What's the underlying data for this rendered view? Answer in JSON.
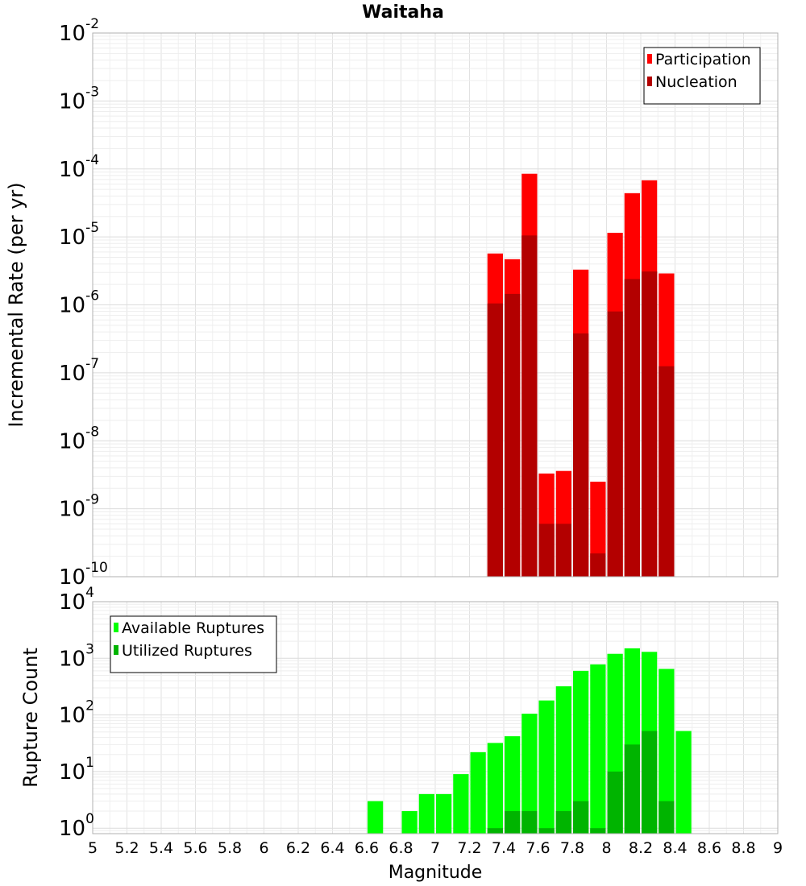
{
  "title": "Waitaha",
  "xlabel": "Magnitude",
  "x_ticks": [
    "5",
    "5.2",
    "5.4",
    "5.6",
    "5.8",
    "6",
    "6.2",
    "6.4",
    "6.6",
    "6.8",
    "7",
    "7.2",
    "7.4",
    "7.6",
    "7.8",
    "8",
    "8.2",
    "8.4",
    "8.6",
    "8.8",
    "9"
  ],
  "chart_data": [
    {
      "type": "bar",
      "ylabel": "Incremental Rate (per yr)",
      "yscale": "log",
      "xlim": [
        5,
        9
      ],
      "ylim": [
        1e-10,
        0.01
      ],
      "y_ticks": [
        {
          "mant": "10",
          "exp": "-10"
        },
        {
          "mant": "10",
          "exp": "-9"
        },
        {
          "mant": "10",
          "exp": "-8"
        },
        {
          "mant": "10",
          "exp": "-7"
        },
        {
          "mant": "10",
          "exp": "-6"
        },
        {
          "mant": "10",
          "exp": "-5"
        },
        {
          "mant": "10",
          "exp": "-4"
        },
        {
          "mant": "10",
          "exp": "-3"
        },
        {
          "mant": "10",
          "exp": "-2"
        }
      ],
      "legend": {
        "placement": "top-right"
      },
      "series": [
        {
          "name": "Participation",
          "color": "#ff0000",
          "x": [
            7.35,
            7.45,
            7.55,
            7.65,
            7.75,
            7.85,
            7.95,
            8.05,
            8.15,
            8.25,
            8.35
          ],
          "values": [
            5.7e-06,
            4.7e-06,
            8.5e-05,
            3.3e-09,
            3.6e-09,
            3.3e-06,
            2.5e-09,
            1.15e-05,
            4.4e-05,
            6.8e-05,
            2.9e-06
          ]
        },
        {
          "name": "Nucleation",
          "color": "#b30000",
          "x": [
            7.35,
            7.45,
            7.55,
            7.65,
            7.75,
            7.85,
            7.95,
            8.05,
            8.15,
            8.25,
            8.35
          ],
          "values": [
            1.05e-06,
            1.45e-06,
            1.05e-05,
            6e-10,
            6e-10,
            3.8e-07,
            2.2e-10,
            8e-07,
            2.4e-06,
            3.1e-06,
            1.25e-07
          ]
        }
      ]
    },
    {
      "type": "bar",
      "ylabel": "Rupture Count",
      "yscale": "log",
      "xlim": [
        5,
        9
      ],
      "ylim": [
        0.8,
        10000.0
      ],
      "y_ticks": [
        {
          "mant": "10",
          "exp": "0",
          "value": 1
        },
        {
          "mant": "10",
          "exp": "1",
          "value": 10
        },
        {
          "mant": "10",
          "exp": "2",
          "value": 100
        },
        {
          "mant": "10",
          "exp": "3",
          "value": 1000
        },
        {
          "mant": "10",
          "exp": "4",
          "value": 10000
        }
      ],
      "legend": {
        "placement": "top-left"
      },
      "series": [
        {
          "name": "Available Ruptures",
          "color": "#00ff00",
          "x": [
            6.65,
            6.85,
            6.95,
            7.05,
            7.15,
            7.25,
            7.35,
            7.45,
            7.55,
            7.65,
            7.75,
            7.85,
            7.95,
            8.05,
            8.15,
            8.25,
            8.35,
            8.45
          ],
          "values": [
            3,
            2,
            4,
            4,
            9,
            22,
            32,
            42,
            105,
            180,
            320,
            600,
            780,
            1200,
            1500,
            1300,
            650,
            52
          ]
        },
        {
          "name": "Utilized Ruptures",
          "color": "#00b400",
          "x": [
            7.35,
            7.45,
            7.55,
            7.65,
            7.75,
            7.85,
            7.95,
            8.05,
            8.15,
            8.25,
            8.35
          ],
          "values": [
            1,
            2,
            2,
            1,
            2,
            3,
            1,
            10,
            30,
            52,
            3
          ]
        }
      ]
    }
  ]
}
